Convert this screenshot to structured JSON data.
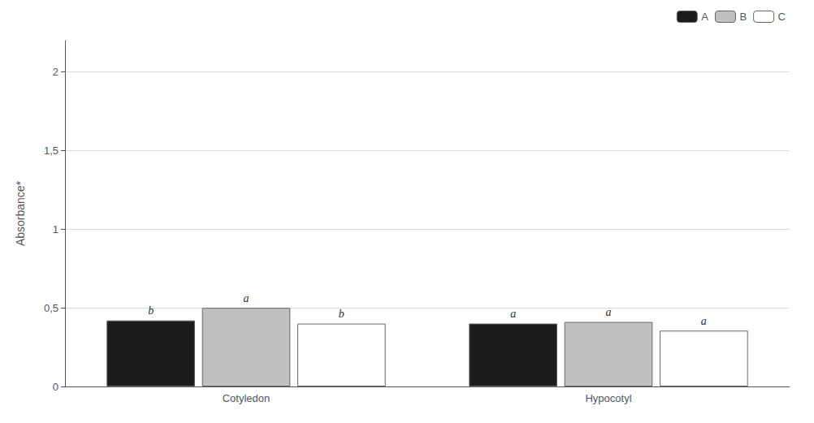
{
  "chart_data": {
    "type": "bar",
    "categories": [
      "Cotyledon",
      "Hypocotyl"
    ],
    "series": [
      {
        "name": "A",
        "color": "#1c1c1c",
        "values": [
          0.42,
          0.4
        ],
        "annotations": [
          "b",
          "a"
        ]
      },
      {
        "name": "B",
        "color": "#c0c0c0",
        "values": [
          0.5,
          0.41
        ],
        "annotations": [
          "a",
          "a"
        ]
      },
      {
        "name": "C",
        "color": "#ffffff",
        "values": [
          0.4,
          0.355
        ],
        "annotations": [
          "b",
          "a"
        ]
      }
    ],
    "y_label": "Absorbance*",
    "ylim": [
      0,
      2.2
    ],
    "yticks": [
      0,
      {
        "value": 0.5,
        "label": "0,5"
      },
      1,
      {
        "value": 1.5,
        "label": "1,5"
      },
      2
    ],
    "grid": true,
    "legend": "upper right"
  }
}
